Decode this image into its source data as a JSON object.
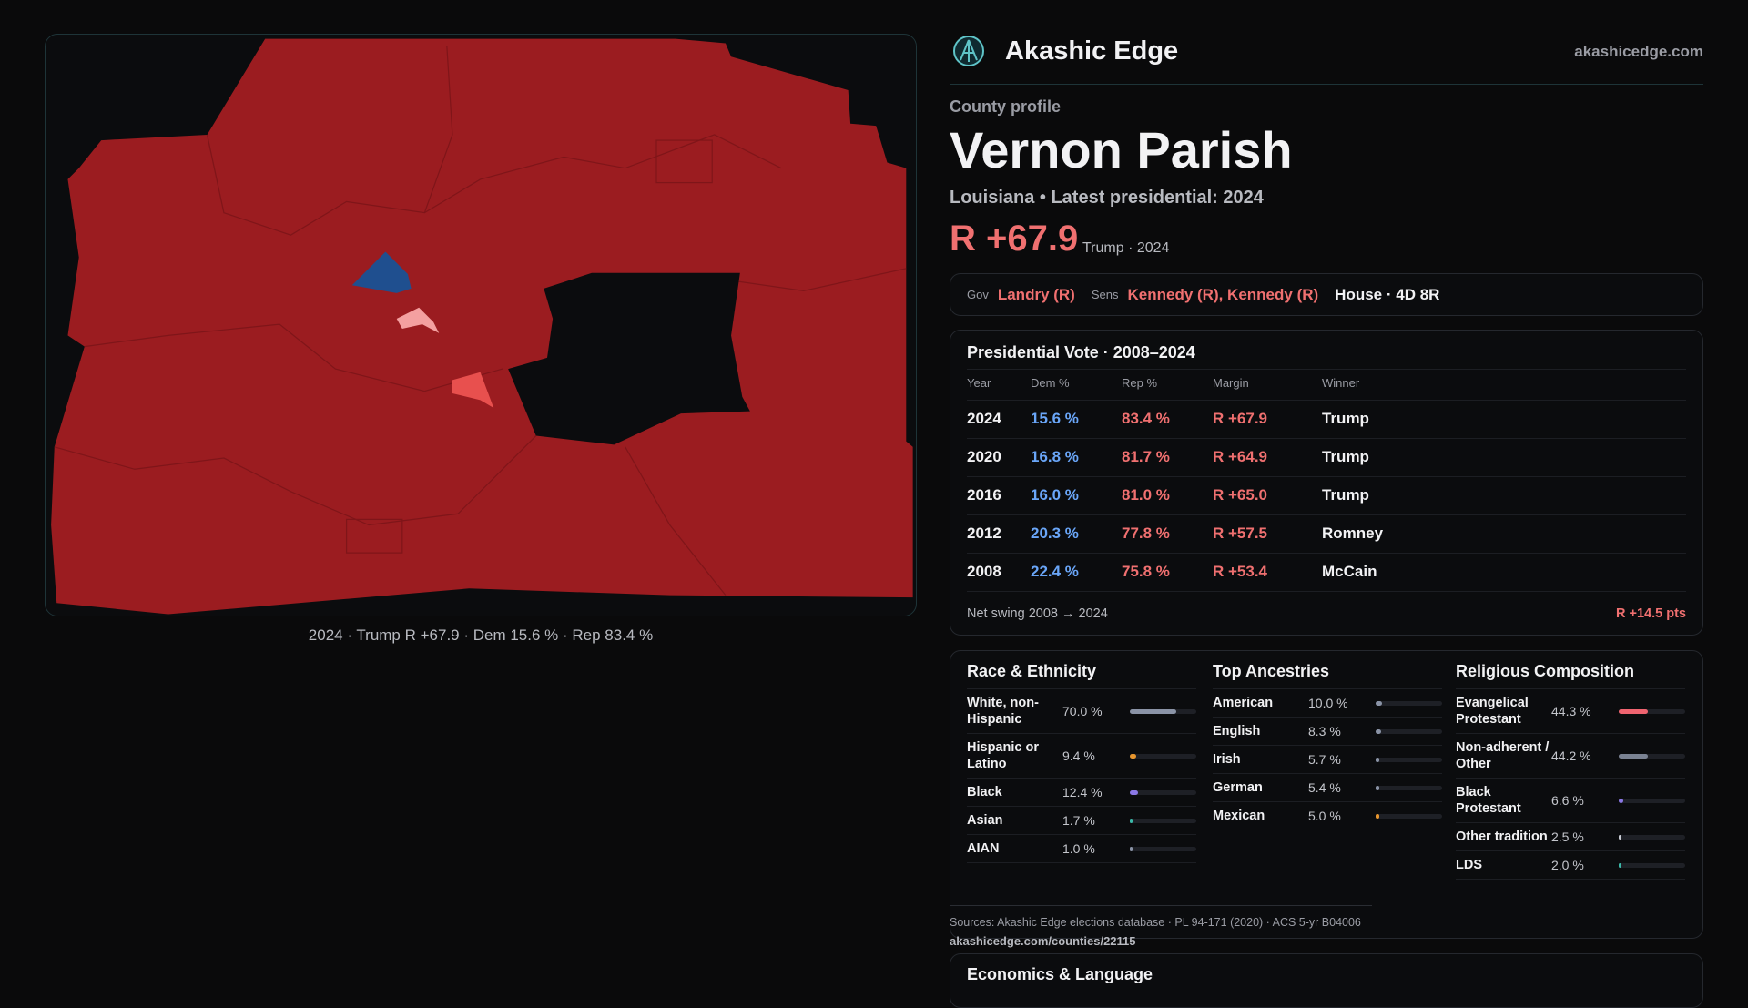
{
  "map": {
    "caption": "2024 · Trump R +67.9 · Dem 15.6 % · Rep 83.4 %"
  },
  "header": {
    "brand": "Akashic Edge",
    "domain": "akashicedge.com"
  },
  "profile": {
    "kicker": "County profile",
    "name": "Vernon Parish",
    "subtitle": "Louisiana • Latest presidential: 2024",
    "margin": "R +67.9",
    "margin_note": "Trump · 2024"
  },
  "officials": {
    "gov_label": "Gov",
    "gov": "Landry (R)",
    "sens_label": "Sens",
    "sens": "Kennedy (R), Kennedy (R)",
    "house": "House · 4D 8R"
  },
  "presidential": {
    "title": "Presidential Vote · 2008–2024",
    "columns": [
      "Year",
      "Dem %",
      "Rep %",
      "Margin",
      "Winner"
    ],
    "rows": [
      [
        "2024",
        "15.6 %",
        "83.4 %",
        "R +67.9",
        "Trump"
      ],
      [
        "2020",
        "16.8 %",
        "81.7 %",
        "R +64.9",
        "Trump"
      ],
      [
        "2016",
        "16.0 %",
        "81.0 %",
        "R +65.0",
        "Trump"
      ],
      [
        "2012",
        "20.3 %",
        "77.8 %",
        "R +57.5",
        "Romney"
      ],
      [
        "2008",
        "22.4 %",
        "75.8 %",
        "R +53.4",
        "McCain"
      ]
    ],
    "swing_label": "Net swing 2008 → 2024",
    "swing": "R +14.5 pts"
  },
  "demographics": [
    {
      "title": "Race & Ethnicity",
      "items": [
        {
          "name": "White, non-Hispanic",
          "value": 70.0,
          "label": "70.0 %",
          "color": "#8a93a6"
        },
        {
          "name": "Hispanic or Latino",
          "value": 9.4,
          "label": "9.4 %",
          "color": "#e8962e"
        },
        {
          "name": "Black",
          "value": 12.4,
          "label": "12.4 %",
          "color": "#8b78e6"
        },
        {
          "name": "Asian",
          "value": 1.7,
          "label": "1.7 %",
          "color": "#3bb8a8"
        },
        {
          "name": "AIAN",
          "value": 1.0,
          "label": "1.0 %",
          "color": "#8a93a6"
        }
      ]
    },
    {
      "title": "Top Ancestries",
      "items": [
        {
          "name": "American",
          "value": 10.0,
          "label": "10.0 %",
          "color": "#8a93a6"
        },
        {
          "name": "English",
          "value": 8.3,
          "label": "8.3 %",
          "color": "#8a93a6"
        },
        {
          "name": "Irish",
          "value": 5.7,
          "label": "5.7 %",
          "color": "#8a93a6"
        },
        {
          "name": "German",
          "value": 5.4,
          "label": "5.4 %",
          "color": "#8a93a6"
        },
        {
          "name": "Mexican",
          "value": 5.0,
          "label": "5.0 %",
          "color": "#e8962e"
        }
      ]
    },
    {
      "title": "Religious Composition",
      "items": [
        {
          "name": "Evangelical Protestant",
          "value": 44.3,
          "label": "44.3 %",
          "color": "#f06470"
        },
        {
          "name": "Non-adherent / Other",
          "value": 44.2,
          "label": "44.2 %",
          "color": "#7a8292"
        },
        {
          "name": "Black Protestant",
          "value": 6.6,
          "label": "6.6 %",
          "color": "#8b78e6"
        },
        {
          "name": "Other tradition",
          "value": 2.5,
          "label": "2.5 %",
          "color": "#c8ccd4"
        },
        {
          "name": "LDS",
          "value": 2.0,
          "label": "2.0 %",
          "color": "#3bb8a8"
        }
      ]
    }
  ],
  "sources": {
    "text": "Sources: Akashic Edge elections database · PL 94-171 (2020) · ACS 5-yr B04006",
    "url": "akashicedge.com/counties/22115"
  },
  "economics": {
    "title": "Economics & Language"
  }
}
